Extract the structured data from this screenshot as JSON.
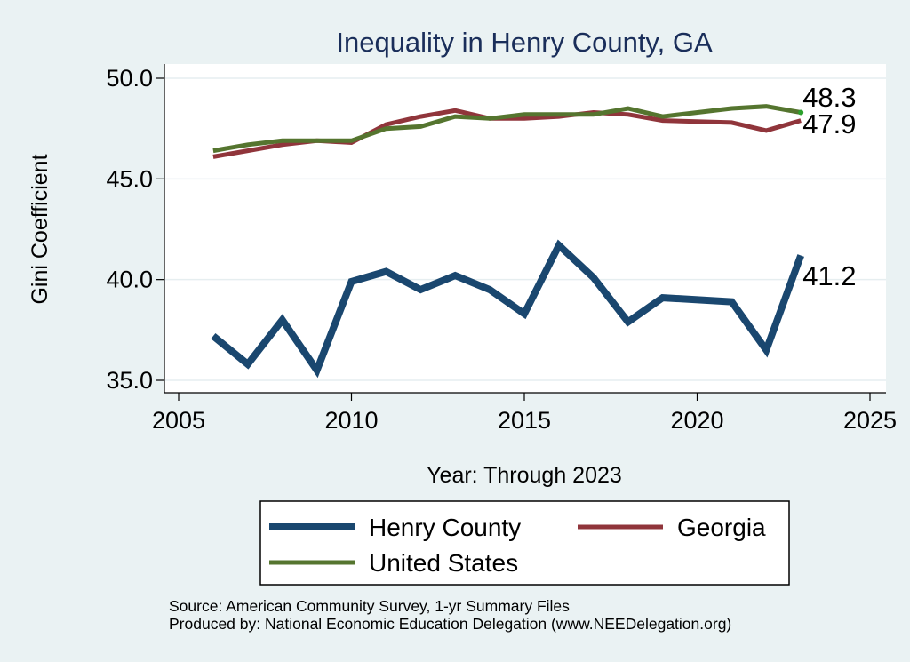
{
  "chart_data": {
    "type": "line",
    "title": "Inequality in Henry County, GA",
    "xlabel": "Year: Through 2023",
    "ylabel": "Gini Coefficient",
    "xlim": [
      2005,
      2025
    ],
    "ylim": [
      35.0,
      50.0
    ],
    "x_ticks": [
      2005,
      2010,
      2015,
      2020,
      2025
    ],
    "y_ticks": [
      35.0,
      40.0,
      45.0,
      50.0
    ],
    "y_tick_labels": [
      "35.0",
      "40.0",
      "45.0",
      "50.0"
    ],
    "grid": true,
    "legend_position": "bottom",
    "x": [
      2006,
      2007,
      2008,
      2009,
      2010,
      2011,
      2012,
      2013,
      2014,
      2015,
      2016,
      2017,
      2018,
      2019,
      2021,
      2022,
      2023
    ],
    "series": [
      {
        "name": "Henry County",
        "color": "#1a476f",
        "values": [
          37.2,
          35.8,
          38.0,
          35.5,
          39.9,
          40.4,
          39.5,
          40.2,
          39.5,
          38.3,
          41.7,
          40.1,
          37.9,
          39.1,
          38.9,
          36.5,
          41.2
        ],
        "end_label": "41.2"
      },
      {
        "name": "Georgia",
        "color": "#90353b",
        "values": [
          46.1,
          46.4,
          46.7,
          46.9,
          46.8,
          47.7,
          48.1,
          48.4,
          48.0,
          48.0,
          48.1,
          48.3,
          48.2,
          47.9,
          47.8,
          47.4,
          47.9
        ],
        "end_label": "47.9"
      },
      {
        "name": "United States",
        "color": "#55752f",
        "values": [
          46.4,
          46.7,
          46.9,
          46.9,
          46.9,
          47.5,
          47.6,
          48.1,
          48.0,
          48.2,
          48.2,
          48.2,
          48.5,
          48.1,
          48.5,
          48.6,
          48.3
        ],
        "end_label": "48.3"
      }
    ],
    "notes": [
      "Source: American Community Survey, 1-yr Summary Files",
      "Produced by: National Economic Education Delegation (www.NEEDelegation.org)"
    ]
  }
}
